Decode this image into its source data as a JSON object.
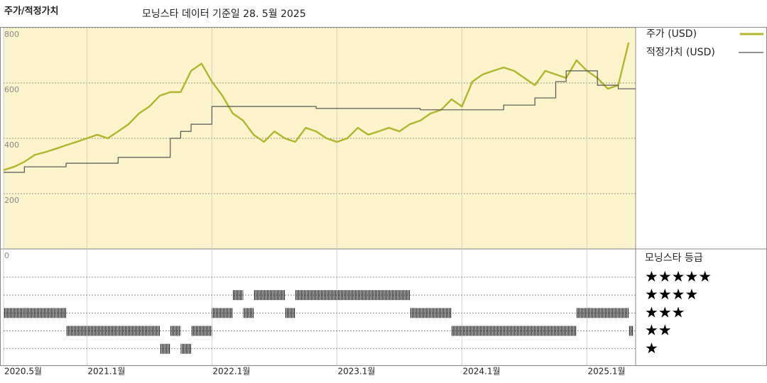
{
  "chart_data": [
    {
      "type": "line",
      "title": "주가/적정가치",
      "subtitle": "모닝스타 데이터 기준일 28. 5월 2025",
      "x": [
        "2020-05",
        "2020-06",
        "2020-07",
        "2020-08",
        "2020-09",
        "2020-10",
        "2020-11",
        "2020-12",
        "2021-01",
        "2021-02",
        "2021-03",
        "2021-04",
        "2021-05",
        "2021-06",
        "2021-07",
        "2021-08",
        "2021-09",
        "2021-10",
        "2021-11",
        "2021-12",
        "2022-01",
        "2022-02",
        "2022-03",
        "2022-04",
        "2022-05",
        "2022-06",
        "2022-07",
        "2022-08",
        "2022-09",
        "2022-10",
        "2022-11",
        "2022-12",
        "2023-01",
        "2023-02",
        "2023-03",
        "2023-04",
        "2023-05",
        "2023-06",
        "2023-07",
        "2023-08",
        "2023-09",
        "2023-10",
        "2023-11",
        "2023-12",
        "2024-01",
        "2024-02",
        "2024-03",
        "2024-04",
        "2024-05",
        "2024-06",
        "2024-07",
        "2024-08",
        "2024-09",
        "2024-10",
        "2024-11",
        "2024-12",
        "2025-01",
        "2025-02",
        "2025-03",
        "2025-04",
        "2025-05"
      ],
      "xticks": [
        {
          "value": "2020-05",
          "label": "2020.5월"
        },
        {
          "value": "2021-01",
          "label": "2021.1월"
        },
        {
          "value": "2022-01",
          "label": "2022.1월"
        },
        {
          "value": "2023-01",
          "label": "2023.1월"
        },
        {
          "value": "2024-01",
          "label": "2024.1월"
        },
        {
          "value": "2025-01",
          "label": "2025.1월"
        }
      ],
      "ylim": [
        0,
        800
      ],
      "yticks": [
        0,
        200,
        400,
        600,
        800
      ],
      "grid": true,
      "series": [
        {
          "name": "주가 (USD)",
          "color": "#b3b42a",
          "values": [
            285,
            297,
            315,
            340,
            350,
            362,
            375,
            387,
            400,
            413,
            400,
            425,
            451,
            490,
            515,
            554,
            567,
            567,
            644,
            670,
            605,
            554,
            490,
            464,
            413,
            387,
            425,
            400,
            387,
            438,
            425,
            400,
            387,
            400,
            438,
            413,
            425,
            438,
            425,
            451,
            464,
            490,
            503,
            541,
            515,
            605,
            631,
            644,
            656,
            644,
            618,
            592,
            644,
            631,
            618,
            682,
            644,
            618,
            579,
            592,
            746
          ]
        },
        {
          "name": "적정가치 (USD)",
          "color": "#555555",
          "step": true,
          "values": [
            277,
            277,
            297,
            297,
            297,
            297,
            310,
            310,
            310,
            310,
            310,
            331,
            331,
            331,
            331,
            331,
            400,
            425,
            451,
            451,
            515,
            515,
            515,
            515,
            515,
            515,
            515,
            515,
            515,
            515,
            508,
            508,
            508,
            508,
            508,
            508,
            508,
            508,
            508,
            508,
            503,
            503,
            503,
            503,
            503,
            503,
            503,
            503,
            520,
            520,
            520,
            546,
            546,
            605,
            644,
            644,
            644,
            592,
            592,
            579,
            579
          ]
        }
      ]
    },
    {
      "type": "rating",
      "title": "모닝스타 등급",
      "x": [
        "2020-05",
        "2020-06",
        "2020-07",
        "2020-08",
        "2020-09",
        "2020-10",
        "2020-11",
        "2020-12",
        "2021-01",
        "2021-02",
        "2021-03",
        "2021-04",
        "2021-05",
        "2021-06",
        "2021-07",
        "2021-08",
        "2021-09",
        "2021-10",
        "2021-11",
        "2021-12",
        "2022-01",
        "2022-02",
        "2022-03",
        "2022-04",
        "2022-05",
        "2022-06",
        "2022-07",
        "2022-08",
        "2022-09",
        "2022-10",
        "2022-11",
        "2022-12",
        "2023-01",
        "2023-02",
        "2023-03",
        "2023-04",
        "2023-05",
        "2023-06",
        "2023-07",
        "2023-08",
        "2023-09",
        "2023-10",
        "2023-11",
        "2023-12",
        "2024-01",
        "2024-02",
        "2024-03",
        "2024-04",
        "2024-05",
        "2024-06",
        "2024-07",
        "2024-08",
        "2024-09",
        "2024-10",
        "2024-11",
        "2024-12",
        "2025-01",
        "2025-02",
        "2025-03",
        "2025-04",
        "2025-05"
      ],
      "values": [
        3,
        3,
        3,
        3,
        3,
        3,
        2,
        2,
        2,
        2,
        2,
        2,
        2,
        2,
        2,
        1,
        2,
        1,
        2,
        2,
        3,
        3,
        4,
        3,
        4,
        4,
        4,
        3,
        4,
        4,
        4,
        4,
        4,
        4,
        4,
        4,
        4,
        4,
        4,
        3,
        3,
        3,
        3,
        2,
        2,
        2,
        2,
        2,
        2,
        2,
        2,
        2,
        2,
        2,
        2,
        3,
        3,
        3,
        3,
        3,
        2
      ],
      "color": "#222222",
      "ylim": [
        0,
        6.5
      ],
      "yticks": [
        {
          "value": 5,
          "label": "★★★★★"
        },
        {
          "value": 4,
          "label": "★★★★"
        },
        {
          "value": 3,
          "label": "★★★"
        },
        {
          "value": 2,
          "label": "★★"
        },
        {
          "value": 1,
          "label": "★"
        }
      ]
    }
  ]
}
